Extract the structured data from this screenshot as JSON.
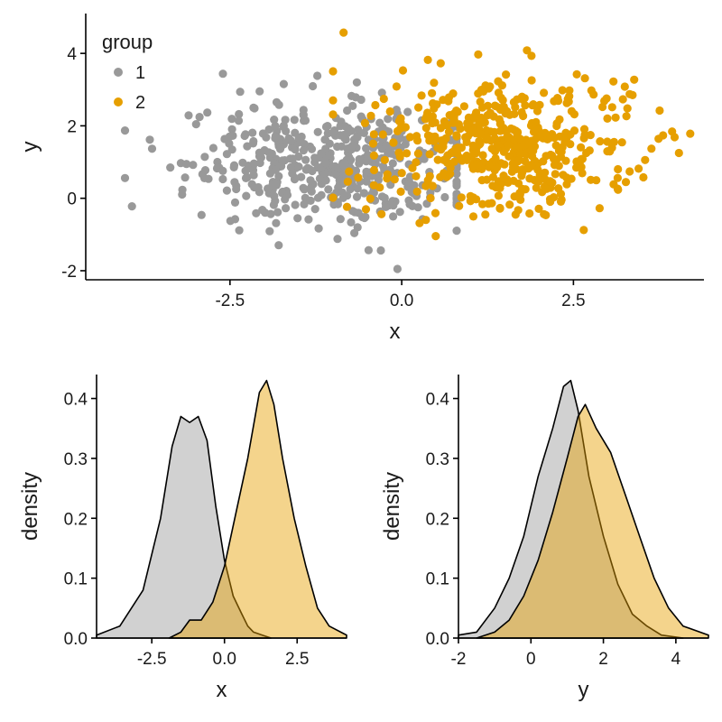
{
  "colors": {
    "group1": "#999999",
    "group2": "#E69F00",
    "axis": "#000000"
  },
  "chart_data": [
    {
      "type": "scatter",
      "title": "",
      "xlabel": "x",
      "ylabel": "y",
      "xlim": [
        -4.6,
        4.4
      ],
      "ylim": [
        -2.25,
        5.1
      ],
      "xticks": [
        -2.5,
        0,
        2.5
      ],
      "xtick_labels": [
        "-2.5",
        "0.0",
        "2.5"
      ],
      "yticks": [
        -2,
        0,
        2,
        4
      ],
      "ytick_labels": [
        "-2",
        "0",
        "2",
        "4"
      ],
      "legend": {
        "title": "group",
        "position": "top-left",
        "labels": [
          "1",
          "2"
        ]
      },
      "series": [
        {
          "name": "1",
          "color_key": "group1",
          "n": 500,
          "x_mean": -1.0,
          "x_sd": 1.0,
          "y_mean": 0.9,
          "y_sd": 0.8,
          "x_range": [
            -4.4,
            0.8
          ],
          "y_range": [
            -1.95,
            4.6
          ]
        },
        {
          "name": "2",
          "color_key": "group2",
          "n": 500,
          "x_mean": 1.5,
          "x_sd": 1.0,
          "y_mean": 1.5,
          "y_sd": 0.95,
          "x_range": [
            -1.0,
            4.2
          ],
          "y_range": [
            -1.4,
            4.9
          ]
        }
      ]
    },
    {
      "type": "area",
      "xlabel": "x",
      "ylabel": "density",
      "xlim": [
        -4.4,
        4.2
      ],
      "ylim": [
        0,
        0.44
      ],
      "xticks": [
        -2.5,
        0,
        2.5
      ],
      "xtick_labels": [
        "-2.5",
        "0.0",
        "2.5"
      ],
      "yticks": [
        0,
        0.1,
        0.2,
        0.3,
        0.4
      ],
      "ytick_labels": [
        "0.0",
        "0.1",
        "0.2",
        "0.3",
        "0.4"
      ],
      "series": [
        {
          "name": "1",
          "color_key": "group1",
          "x": [
            -4.4,
            -3.6,
            -2.8,
            -2.2,
            -1.8,
            -1.5,
            -1.2,
            -0.9,
            -0.6,
            -0.3,
            0.0,
            0.3,
            0.6,
            0.8,
            1.0,
            1.3,
            1.6
          ],
          "y": [
            0.005,
            0.02,
            0.08,
            0.2,
            0.32,
            0.37,
            0.36,
            0.37,
            0.33,
            0.22,
            0.13,
            0.07,
            0.04,
            0.02,
            0.01,
            0.005,
            0.0
          ]
        },
        {
          "name": "2",
          "color_key": "group2",
          "x": [
            -1.9,
            -1.5,
            -1.2,
            -0.8,
            -0.4,
            0.0,
            0.4,
            0.8,
            1.2,
            1.45,
            1.7,
            2.0,
            2.4,
            2.8,
            3.2,
            3.6,
            4.2
          ],
          "y": [
            0.0,
            0.01,
            0.03,
            0.03,
            0.06,
            0.12,
            0.21,
            0.3,
            0.41,
            0.43,
            0.39,
            0.3,
            0.2,
            0.12,
            0.05,
            0.02,
            0.005
          ]
        }
      ]
    },
    {
      "type": "area",
      "xlabel": "y",
      "ylabel": "density",
      "xlim": [
        -2.0,
        4.9
      ],
      "ylim": [
        0,
        0.44
      ],
      "xticks": [
        -2,
        0,
        2,
        4
      ],
      "xtick_labels": [
        "-2",
        "0",
        "2",
        "4"
      ],
      "yticks": [
        0,
        0.1,
        0.2,
        0.3,
        0.4
      ],
      "ytick_labels": [
        "0.0",
        "0.1",
        "0.2",
        "0.3",
        "0.4"
      ],
      "series": [
        {
          "name": "1",
          "color_key": "group1",
          "x": [
            -2.0,
            -1.5,
            -1.0,
            -0.6,
            -0.2,
            0.2,
            0.6,
            0.9,
            1.1,
            1.3,
            1.6,
            2.0,
            2.4,
            2.8,
            3.2,
            3.6,
            4.2
          ],
          "y": [
            0.005,
            0.01,
            0.05,
            0.1,
            0.17,
            0.27,
            0.35,
            0.42,
            0.43,
            0.38,
            0.27,
            0.17,
            0.09,
            0.04,
            0.02,
            0.005,
            0.0
          ]
        },
        {
          "name": "2",
          "color_key": "group2",
          "x": [
            -1.5,
            -1.0,
            -0.6,
            -0.2,
            0.2,
            0.6,
            1.0,
            1.3,
            1.5,
            1.8,
            2.2,
            2.6,
            3.0,
            3.4,
            3.8,
            4.2,
            4.9
          ],
          "y": [
            0.0,
            0.01,
            0.03,
            0.07,
            0.13,
            0.21,
            0.3,
            0.37,
            0.39,
            0.35,
            0.31,
            0.24,
            0.17,
            0.1,
            0.05,
            0.02,
            0.005
          ]
        }
      ]
    }
  ]
}
